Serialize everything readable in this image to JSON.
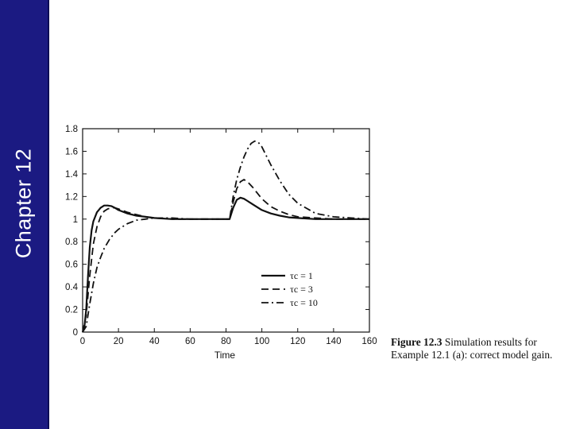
{
  "slide": {
    "sidebar_title": "Chapter 12"
  },
  "figure": {
    "caption_label": "Figure 12.3",
    "caption_text_line1": "Simulation results for",
    "caption_text_line2": "Example 12.1 (a): correct model gain."
  },
  "colors": {
    "sidebar": "#1b1a82",
    "ink": "#111111"
  },
  "chart_data": {
    "type": "line",
    "xlabel": "Time",
    "ylabel": "",
    "xlim": [
      0,
      160
    ],
    "ylim": [
      0,
      1.8
    ],
    "xticks": [
      0,
      20,
      40,
      60,
      80,
      100,
      120,
      140,
      160
    ],
    "yticks": [
      0,
      0.2,
      0.4,
      0.6,
      0.8,
      1,
      1.2,
      1.4,
      1.6,
      1.8
    ],
    "grid": false,
    "legend_position": "center-right",
    "series": [
      {
        "name": "τc = 1",
        "style": "solid",
        "x": [
          0,
          1,
          2,
          3,
          4,
          5,
          6,
          8,
          10,
          12,
          14,
          16,
          18,
          20,
          25,
          30,
          35,
          40,
          50,
          60,
          70,
          82,
          84,
          86,
          88,
          90,
          92,
          95,
          100,
          105,
          110,
          115,
          120,
          130,
          140,
          150,
          160
        ],
        "y": [
          0,
          0.05,
          0.2,
          0.5,
          0.75,
          0.9,
          0.98,
          1.06,
          1.1,
          1.12,
          1.12,
          1.115,
          1.1,
          1.08,
          1.05,
          1.03,
          1.02,
          1.01,
          1.0,
          1.0,
          1.0,
          1.0,
          1.1,
          1.17,
          1.19,
          1.18,
          1.16,
          1.13,
          1.08,
          1.05,
          1.03,
          1.015,
          1.01,
          1.0,
          1.0,
          1.0,
          1.0
        ]
      },
      {
        "name": "τc = 3",
        "style": "dashed",
        "x": [
          0,
          2,
          4,
          6,
          8,
          10,
          12,
          14,
          16,
          18,
          20,
          25,
          30,
          35,
          40,
          50,
          60,
          70,
          82,
          84,
          86,
          88,
          90,
          92,
          95,
          100,
          105,
          110,
          115,
          120,
          130,
          140,
          150,
          160
        ],
        "y": [
          0,
          0.15,
          0.5,
          0.78,
          0.93,
          1.02,
          1.07,
          1.09,
          1.1,
          1.1,
          1.09,
          1.06,
          1.04,
          1.02,
          1.01,
          1.0,
          1.0,
          1.0,
          1.0,
          1.15,
          1.27,
          1.33,
          1.35,
          1.33,
          1.28,
          1.18,
          1.11,
          1.07,
          1.04,
          1.02,
          1.01,
          1.0,
          1.0,
          1.0
        ]
      },
      {
        "name": "τc = 10",
        "style": "dash-dot",
        "x": [
          0,
          2,
          4,
          6,
          8,
          10,
          12,
          15,
          18,
          20,
          25,
          30,
          35,
          40,
          45,
          50,
          60,
          70,
          82,
          84,
          86,
          88,
          90,
          92,
          94,
          96,
          98,
          100,
          105,
          110,
          115,
          120,
          130,
          140,
          150,
          160
        ],
        "y": [
          0,
          0.05,
          0.25,
          0.43,
          0.57,
          0.66,
          0.74,
          0.82,
          0.88,
          0.91,
          0.96,
          0.99,
          1.0,
          1.01,
          1.01,
          1.01,
          1.0,
          1.0,
          1.0,
          1.2,
          1.35,
          1.46,
          1.55,
          1.62,
          1.67,
          1.69,
          1.68,
          1.64,
          1.48,
          1.34,
          1.22,
          1.14,
          1.05,
          1.02,
          1.01,
          1.0
        ]
      }
    ]
  }
}
